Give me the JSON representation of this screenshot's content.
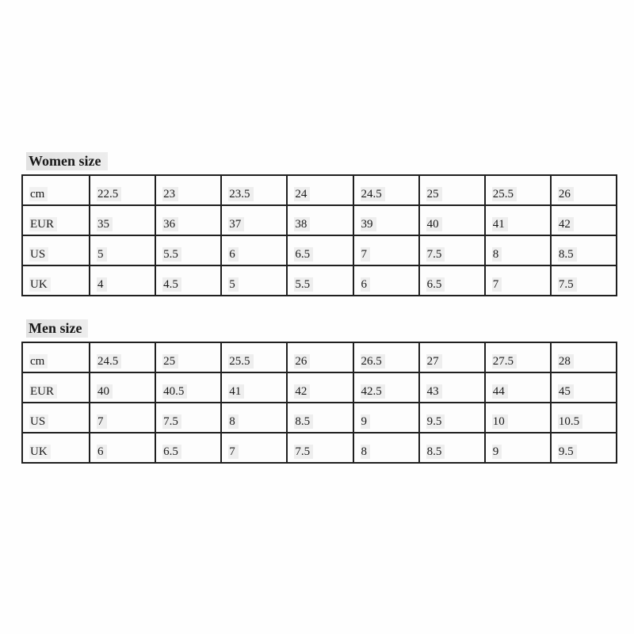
{
  "page": {
    "description": "Shoe size conversion chart with two tables",
    "background": "#fefefe"
  },
  "colors": {
    "border_color": "#1f1f1f",
    "text_color": "#1a1a1a",
    "title_highlight": "#d8d8d8",
    "page_bg": "#fefefe"
  },
  "tables": [
    {
      "title": "Women size",
      "rows": [
        {
          "label": "cm",
          "values": [
            "22.5",
            "23",
            "23.5",
            "24",
            "24.5",
            "25",
            "25.5",
            "26"
          ]
        },
        {
          "label": "EUR",
          "values": [
            "35",
            "36",
            "37",
            "38",
            "39",
            "40",
            "41",
            "42"
          ]
        },
        {
          "label": "US",
          "values": [
            "5",
            "5.5",
            "6",
            "6.5",
            "7",
            "7.5",
            "8",
            "8.5"
          ]
        },
        {
          "label": "UK",
          "values": [
            "4",
            "4.5",
            "5",
            "5.5",
            "6",
            "6.5",
            "7",
            "7.5"
          ]
        }
      ]
    },
    {
      "title": "Men size",
      "rows": [
        {
          "label": "cm",
          "values": [
            "24.5",
            "25",
            "25.5",
            "26",
            "26.5",
            "27",
            "27.5",
            "28"
          ]
        },
        {
          "label": "EUR",
          "values": [
            "40",
            "40.5",
            "41",
            "42",
            "42.5",
            "43",
            "44",
            "45"
          ]
        },
        {
          "label": "US",
          "values": [
            "7",
            "7.5",
            "8",
            "8.5",
            "9",
            "9.5",
            "10",
            "10.5"
          ]
        },
        {
          "label": "UK",
          "values": [
            "6",
            "6.5",
            "7",
            "7.5",
            "8",
            "8.5",
            "9",
            "9.5"
          ]
        }
      ]
    }
  ]
}
